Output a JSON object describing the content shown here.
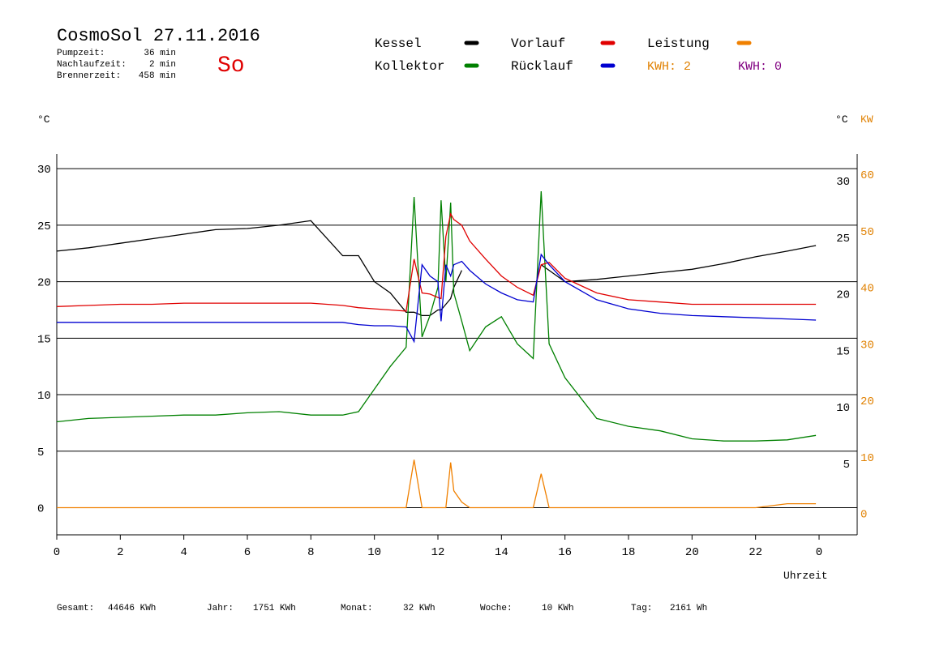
{
  "header": {
    "title": "CosmoSol 27.11.2016",
    "day": "So",
    "stats": [
      {
        "label": "Pumpzeit:",
        "value": "36 min"
      },
      {
        "label": "Nachlaufzeit:",
        "value": "2 min"
      },
      {
        "label": "Brennerzeit:",
        "value": "458 min"
      }
    ],
    "kwh_labels": [
      {
        "text": "KWH: 2",
        "color": "#e08000"
      },
      {
        "text": "KWH: 0",
        "color": "#800080"
      }
    ]
  },
  "footer": [
    {
      "label": "Gesamt:",
      "value": "44646 KWh"
    },
    {
      "label": "Jahr:",
      "value": "1751 KWh"
    },
    {
      "label": "Monat:",
      "value": "32 KWh"
    },
    {
      "label": "Woche:",
      "value": "10 KWh"
    },
    {
      "label": "Tag:",
      "value": "2161 Wh"
    }
  ],
  "chart_data": {
    "type": "line",
    "x_label": "Uhrzeit",
    "y_label": "°C",
    "y_right_label": "°C",
    "y2_label": "KW",
    "x": [
      0,
      1,
      2,
      3,
      4,
      5,
      6,
      7,
      8,
      9,
      9.5,
      10,
      10.5,
      11,
      11.25,
      11.5,
      11.75,
      12,
      12.1,
      12.25,
      12.4,
      12.5,
      12.75,
      13,
      13.5,
      14,
      14.5,
      15,
      15.25,
      15.5,
      16,
      17,
      18,
      19,
      20,
      21,
      22,
      23,
      23.9
    ],
    "xlim": [
      0,
      25.2
    ],
    "xticks": [
      0,
      2,
      4,
      6,
      8,
      10,
      12,
      14,
      16,
      18,
      20,
      22,
      {
        "value": 24,
        "label": "0"
      }
    ],
    "ylim": [
      -2.4,
      31.3
    ],
    "yticks": [
      0,
      5,
      10,
      15,
      20,
      25,
      30
    ],
    "y_right_ticks": [
      5,
      10,
      15,
      20,
      25,
      30
    ],
    "y2lim": [
      -4.8,
      62.6
    ],
    "y2ticks": [
      0,
      10,
      20,
      30,
      40,
      50,
      60
    ],
    "grid": true,
    "series": [
      {
        "name": "Kessel",
        "color": "#000000",
        "values": [
          22.7,
          23.0,
          23.4,
          23.8,
          24.2,
          24.6,
          24.7,
          25.0,
          25.4,
          22.3,
          22.3,
          20.0,
          19.0,
          17.3,
          17.3,
          17.0,
          17.0,
          17.5,
          17.5,
          18.0,
          18.5,
          19.5,
          21.0,
          null,
          null,
          null,
          null,
          null,
          21.5,
          21.0,
          20.0,
          20.2,
          20.5,
          20.8,
          21.1,
          21.6,
          22.2,
          22.7,
          23.2
        ]
      },
      {
        "name": "Kollektor",
        "color": "#008000",
        "values": [
          7.6,
          7.9,
          8.0,
          8.1,
          8.2,
          8.2,
          8.4,
          8.5,
          8.2,
          8.2,
          8.5,
          10.5,
          12.5,
          14.2,
          27.5,
          15.1,
          17.0,
          19.5,
          27.2,
          20.0,
          27.0,
          19.0,
          16.5,
          13.9,
          16.0,
          16.9,
          14.5,
          13.2,
          28.0,
          14.5,
          11.5,
          7.9,
          7.2,
          6.8,
          6.1,
          5.9,
          5.9,
          6.0,
          6.4
        ]
      },
      {
        "name": "Vorlauf",
        "color": "#e00000",
        "values": [
          17.8,
          17.9,
          18.0,
          18.0,
          18.1,
          18.1,
          18.1,
          18.1,
          18.1,
          17.9,
          17.7,
          17.6,
          17.5,
          17.4,
          22.0,
          19.0,
          18.9,
          18.6,
          18.5,
          24.0,
          26.0,
          25.5,
          25.0,
          23.6,
          22.0,
          20.5,
          19.5,
          18.8,
          21.5,
          21.7,
          20.3,
          19.0,
          18.4,
          18.2,
          18.0,
          18.0,
          18.0,
          18.0,
          18.0
        ]
      },
      {
        "name": "Rücklauf",
        "color": "#0000d0",
        "values": [
          16.4,
          16.4,
          16.4,
          16.4,
          16.4,
          16.4,
          16.4,
          16.4,
          16.4,
          16.4,
          16.2,
          16.1,
          16.1,
          16.0,
          14.7,
          21.5,
          20.5,
          20.0,
          16.5,
          21.5,
          20.5,
          21.5,
          21.8,
          21.0,
          19.8,
          19.0,
          18.4,
          18.2,
          22.4,
          21.5,
          20.0,
          18.4,
          17.6,
          17.2,
          17.0,
          16.9,
          16.8,
          16.7,
          16.6
        ]
      },
      {
        "name": "Leistung",
        "color": "#f08000",
        "axis": "y2",
        "values": [
          0,
          0,
          0,
          0,
          0,
          0,
          0,
          0,
          0,
          0,
          0,
          0,
          0,
          0,
          8.5,
          0,
          0,
          0,
          0,
          0,
          8,
          3,
          1,
          0,
          0,
          0,
          0,
          0,
          6,
          0,
          0,
          0,
          0,
          0,
          0,
          0,
          0,
          0.7,
          0.7
        ]
      }
    ]
  }
}
